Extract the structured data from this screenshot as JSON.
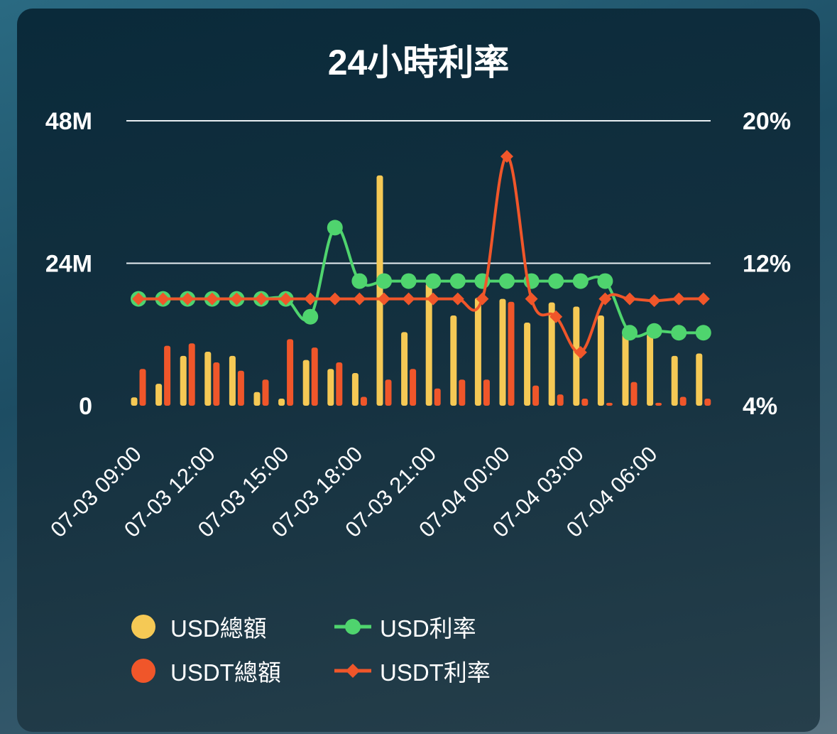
{
  "chart_data": {
    "type": "bar+line",
    "title": "24小時利率",
    "left_axis": {
      "ticks": [
        "0",
        "24M",
        "48M"
      ],
      "range": [
        0,
        48
      ]
    },
    "right_axis": {
      "ticks": [
        "4%",
        "12%",
        "20%"
      ],
      "range": [
        4,
        20
      ]
    },
    "x_tick_labels": [
      "07-03 09:00",
      "07-03 12:00",
      "07-03 15:00",
      "07-03 18:00",
      "07-03 21:00",
      "07-04 00:00",
      "07-04 03:00",
      "07-04 06:00"
    ],
    "x": [
      "07-03 09:00",
      "07-03 10:00",
      "07-03 11:00",
      "07-03 12:00",
      "07-03 13:00",
      "07-03 14:00",
      "07-03 15:00",
      "07-03 16:00",
      "07-03 17:00",
      "07-03 18:00",
      "07-03 19:00",
      "07-03 20:00",
      "07-03 21:00",
      "07-03 22:00",
      "07-03 23:00",
      "07-04 00:00",
      "07-04 01:00",
      "07-04 02:00",
      "07-04 03:00",
      "07-04 04:00",
      "07-04 05:00",
      "07-04 06:00",
      "07-04 07:00",
      "07-04 08:00"
    ],
    "series": [
      {
        "name": "USD總額",
        "kind": "bar",
        "axis": "left",
        "color": "#f5c955",
        "values": [
          1.4,
          3.7,
          8.4,
          9.1,
          8.4,
          2.3,
          1.2,
          7.7,
          6.2,
          5.5,
          38.8,
          12.4,
          20.6,
          15.2,
          18.2,
          18.0,
          14.0,
          17.4,
          16.7,
          15.2,
          12.4,
          12.1,
          8.4,
          8.8
        ]
      },
      {
        "name": "USD利率",
        "kind": "line",
        "axis": "right",
        "color": "#4fd46e",
        "marker": "circle",
        "values": [
          10.0,
          10.0,
          10.0,
          10.0,
          10.0,
          10.0,
          10.0,
          9.0,
          14.0,
          11.0,
          11.0,
          11.0,
          11.0,
          11.0,
          11.0,
          11.0,
          11.0,
          11.0,
          11.0,
          11.0,
          8.1,
          8.2,
          8.1,
          8.1
        ]
      },
      {
        "name": "USDT總額",
        "kind": "bar",
        "axis": "left",
        "color": "#f0562a",
        "values": [
          6.2,
          10.1,
          10.5,
          7.3,
          5.9,
          4.4,
          11.2,
          9.8,
          7.3,
          1.5,
          4.4,
          6.2,
          2.9,
          4.4,
          4.4,
          17.5,
          3.4,
          1.9,
          1.2,
          0.5,
          4.0,
          0.5,
          1.5,
          1.2
        ]
      },
      {
        "name": "USDT利率",
        "kind": "line",
        "axis": "right",
        "color": "#f0562a",
        "marker": "diamond",
        "values": [
          10.0,
          10.0,
          10.0,
          10.0,
          10.0,
          10.0,
          10.0,
          10.0,
          10.0,
          10.0,
          10.0,
          10.0,
          10.0,
          10.0,
          10.0,
          18.0,
          10.0,
          9.0,
          7.0,
          10.0,
          10.0,
          9.9,
          10.0,
          10.0
        ]
      }
    ],
    "grid": true,
    "legend_position": "bottom"
  },
  "colors": {
    "card_bg": "#0f2d3c",
    "usd": "#f5c955",
    "usd_rate": "#4fd46e",
    "usdt": "#f0562a"
  }
}
